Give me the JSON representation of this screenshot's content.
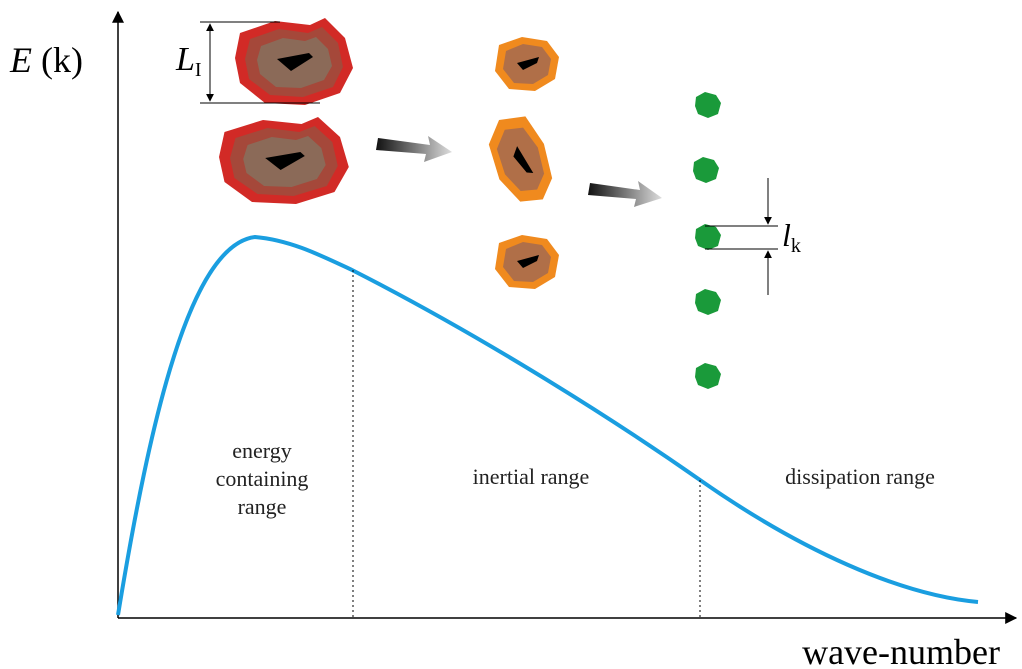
{
  "axes": {
    "y_label": {
      "symbol": "E",
      "argument": "(k)"
    },
    "x_label": "wave-number"
  },
  "regions": [
    {
      "lines": [
        "energy",
        "containing",
        "range"
      ]
    },
    {
      "lines": [
        "inertial range"
      ]
    },
    {
      "lines": [
        "dissipation range"
      ]
    }
  ],
  "scales": {
    "large": {
      "symbol": "L",
      "subscript": "I"
    },
    "small": {
      "symbol": "l",
      "subscript": "k"
    }
  }
}
